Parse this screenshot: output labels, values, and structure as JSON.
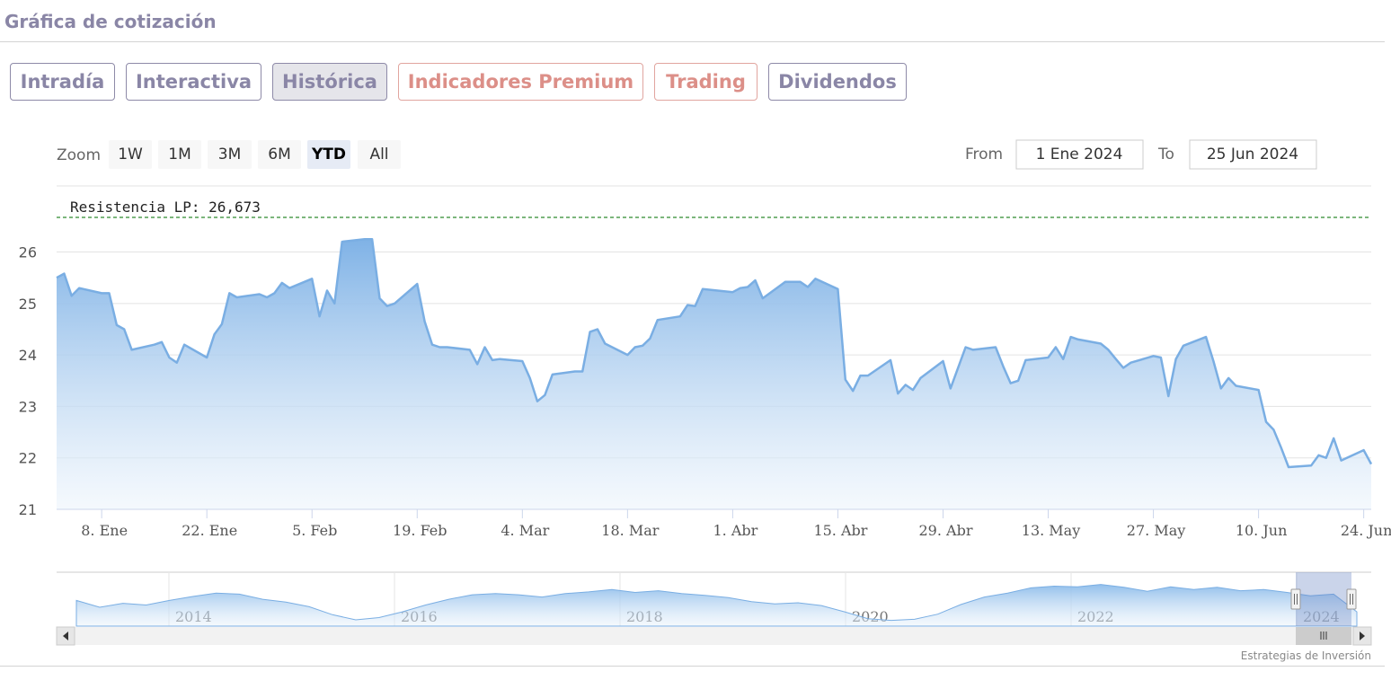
{
  "section_title": "Gráfica de cotización",
  "tabs": [
    {
      "label": "Intradía",
      "style": "normal",
      "active": false
    },
    {
      "label": "Interactiva",
      "style": "normal",
      "active": false
    },
    {
      "label": "Histórica",
      "style": "normal",
      "active": true
    },
    {
      "label": "Indicadores Premium",
      "style": "premium",
      "active": false
    },
    {
      "label": "Trading",
      "style": "premium",
      "active": false
    },
    {
      "label": "Dividendos",
      "style": "normal",
      "active": false
    }
  ],
  "range_selector": {
    "zoom_label": "Zoom",
    "buttons": [
      "1W",
      "1M",
      "3M",
      "6M",
      "YTD",
      "All"
    ],
    "selected": "YTD",
    "from_label": "From",
    "from_value": "1 Ene 2024",
    "to_label": "To",
    "to_value": "25 Jun 2024"
  },
  "colors": {
    "line": "#7aaee3",
    "fill_top": "#7fb2e6",
    "fill_bottom": "#eef5fc",
    "resistance": "#2e8b2e",
    "grid": "#e3e3e3",
    "brand_text": "#8a86a6",
    "premium_text": "#dc8f88"
  },
  "chart_data": {
    "type": "area",
    "ylim": [
      21,
      26.9
    ],
    "y_ticks": [
      21,
      22,
      23,
      24,
      25,
      26
    ],
    "x_ticks": [
      {
        "date": "2024-01-08",
        "label": "8. Ene"
      },
      {
        "date": "2024-01-22",
        "label": "22. Ene"
      },
      {
        "date": "2024-02-05",
        "label": "5. Feb"
      },
      {
        "date": "2024-02-19",
        "label": "19. Feb"
      },
      {
        "date": "2024-03-04",
        "label": "4. Mar"
      },
      {
        "date": "2024-03-18",
        "label": "18. Mar"
      },
      {
        "date": "2024-04-01",
        "label": "1. Abr"
      },
      {
        "date": "2024-04-15",
        "label": "15. Abr"
      },
      {
        "date": "2024-04-29",
        "label": "29. Abr"
      },
      {
        "date": "2024-05-13",
        "label": "13. May"
      },
      {
        "date": "2024-05-27",
        "label": "27. May"
      },
      {
        "date": "2024-06-10",
        "label": "10. Jun"
      },
      {
        "date": "2024-06-24",
        "label": "24. Jun"
      }
    ],
    "x_range": [
      "2024-01-02",
      "2024-06-25"
    ],
    "plot_line": {
      "label": "Resistencia LP: 26,673",
      "value": 26.673
    },
    "series": [
      {
        "x": [
          "2024-01-02",
          "2024-01-03",
          "2024-01-04",
          "2024-01-05",
          "2024-01-08",
          "2024-01-09",
          "2024-01-10",
          "2024-01-11",
          "2024-01-12",
          "2024-01-15",
          "2024-01-16",
          "2024-01-17",
          "2024-01-18",
          "2024-01-19",
          "2024-01-22",
          "2024-01-23",
          "2024-01-24",
          "2024-01-25",
          "2024-01-26",
          "2024-01-29",
          "2024-01-30",
          "2024-01-31",
          "2024-02-01",
          "2024-02-02",
          "2024-02-05",
          "2024-02-06",
          "2024-02-07",
          "2024-02-08",
          "2024-02-09",
          "2024-02-12",
          "2024-02-13",
          "2024-02-14",
          "2024-02-15",
          "2024-02-16",
          "2024-02-19",
          "2024-02-20",
          "2024-02-21",
          "2024-02-22",
          "2024-02-23",
          "2024-02-26",
          "2024-02-27",
          "2024-02-28",
          "2024-02-29",
          "2024-03-01",
          "2024-03-04",
          "2024-03-05",
          "2024-03-06",
          "2024-03-07",
          "2024-03-08",
          "2024-03-11",
          "2024-03-12",
          "2024-03-13",
          "2024-03-14",
          "2024-03-15",
          "2024-03-18",
          "2024-03-19",
          "2024-03-20",
          "2024-03-21",
          "2024-03-22",
          "2024-03-25",
          "2024-03-26",
          "2024-03-27",
          "2024-03-28",
          "2024-04-01",
          "2024-04-02",
          "2024-04-03",
          "2024-04-04",
          "2024-04-05",
          "2024-04-08",
          "2024-04-09",
          "2024-04-10",
          "2024-04-11",
          "2024-04-12",
          "2024-04-15",
          "2024-04-16",
          "2024-04-17",
          "2024-04-18",
          "2024-04-19",
          "2024-04-22",
          "2024-04-23",
          "2024-04-24",
          "2024-04-25",
          "2024-04-26",
          "2024-04-29",
          "2024-04-30",
          "2024-05-02",
          "2024-05-03",
          "2024-05-06",
          "2024-05-07",
          "2024-05-08",
          "2024-05-09",
          "2024-05-10",
          "2024-05-13",
          "2024-05-14",
          "2024-05-15",
          "2024-05-16",
          "2024-05-17",
          "2024-05-20",
          "2024-05-21",
          "2024-05-22",
          "2024-05-23",
          "2024-05-24",
          "2024-05-27",
          "2024-05-28",
          "2024-05-29",
          "2024-05-30",
          "2024-05-31",
          "2024-06-03",
          "2024-06-04",
          "2024-06-05",
          "2024-06-06",
          "2024-06-07",
          "2024-06-10",
          "2024-06-11",
          "2024-06-12",
          "2024-06-13",
          "2024-06-14",
          "2024-06-17",
          "2024-06-18",
          "2024-06-19",
          "2024-06-20",
          "2024-06-21",
          "2024-06-24",
          "2024-06-25"
        ],
        "values": [
          25.5,
          25.58,
          25.15,
          25.3,
          25.2,
          25.2,
          24.58,
          24.5,
          24.1,
          24.2,
          24.25,
          23.95,
          23.85,
          24.2,
          23.95,
          24.4,
          24.6,
          25.2,
          25.12,
          25.18,
          25.12,
          25.2,
          25.4,
          25.3,
          25.48,
          24.75,
          25.25,
          25,
          26.2,
          26.25,
          26.25,
          25.1,
          24.95,
          25,
          25.38,
          24.65,
          24.2,
          24.15,
          24.15,
          24.1,
          23.82,
          24.15,
          23.9,
          23.92,
          23.88,
          23.55,
          23.1,
          23.22,
          23.62,
          23.68,
          23.68,
          24.45,
          24.5,
          24.22,
          24,
          24.15,
          24.18,
          24.32,
          24.68,
          24.75,
          24.97,
          24.95,
          25.28,
          25.22,
          25.3,
          25.32,
          25.45,
          25.1,
          25.42,
          25.42,
          25.42,
          25.32,
          25.48,
          25.28,
          23.52,
          23.3,
          23.6,
          23.6,
          23.9,
          23.25,
          23.42,
          23.32,
          23.55,
          23.88,
          23.35,
          24.15,
          24.1,
          24.15,
          23.78,
          23.45,
          23.5,
          23.9,
          23.95,
          24.15,
          23.92,
          24.35,
          24.3,
          24.22,
          24.1,
          23.92,
          23.75,
          23.85,
          23.98,
          23.95,
          23.2,
          23.92,
          24.18,
          24.35,
          23.88,
          23.35,
          23.55,
          23.4,
          23.32,
          22.7,
          22.55,
          22.2,
          21.82,
          21.85,
          22.05,
          22,
          22.38,
          21.95,
          22.15,
          21.88
        ]
      }
    ],
    "navigator": {
      "x_labels": [
        "2014",
        "2016",
        "2018",
        "2020",
        "2022",
        "2024"
      ],
      "values": [
        24,
        22.8,
        23.5,
        23.2,
        24,
        24.7,
        25.3,
        25.1,
        24.2,
        23.7,
        22.9,
        21.5,
        20.6,
        21,
        22,
        23.2,
        24.2,
        25,
        25.2,
        25,
        24.6,
        25.2,
        25.5,
        25.9,
        25.4,
        25.7,
        25.2,
        24.9,
        24.5,
        23.8,
        23.4,
        23.6,
        23.1,
        22,
        20.8,
        20.5,
        20.7,
        21.6,
        23.3,
        24.6,
        25.3,
        26.2,
        26.5,
        26.4,
        26.8,
        26.3,
        25.6,
        26.4,
        25.9,
        26.3,
        25.7,
        25.9,
        25.4,
        24.8,
        25.1,
        22
      ]
    }
  },
  "credits": "Estrategias de Inversión"
}
